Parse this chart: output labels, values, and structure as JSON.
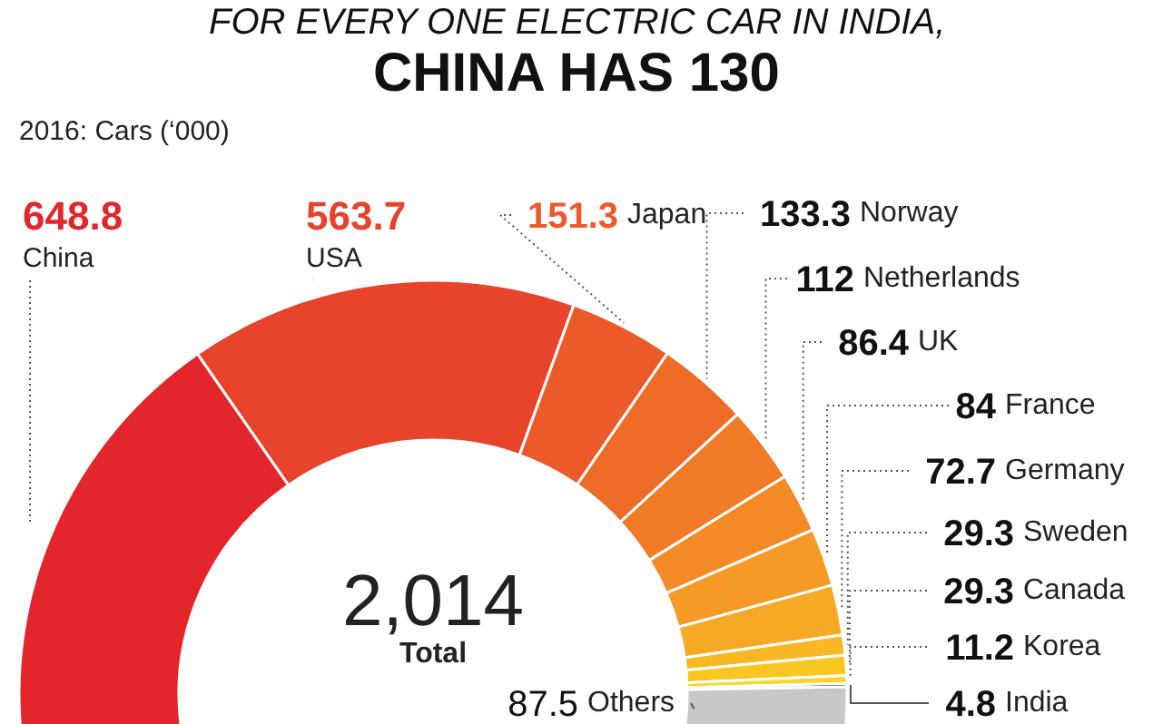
{
  "chart_data": {
    "type": "donut",
    "title": "FOR EVERY ONE ELECTRIC CAR IN INDIA,",
    "subtitle": "CHINA HAS 130",
    "categories": [
      "China",
      "USA",
      "Japan",
      "Norway",
      "Netherlands",
      "UK",
      "France",
      "Germany",
      "Sweden",
      "Canada",
      "Korea",
      "India",
      "Others"
    ],
    "values": [
      648.8,
      563.7,
      151.3,
      133.3,
      112,
      86.4,
      84,
      72.7,
      29.3,
      29.3,
      11.2,
      4.8,
      87.5
    ],
    "colors": [
      "#e3262b",
      "#e8432b",
      "#ec5a2a",
      "#ef6b28",
      "#f17b27",
      "#f38a26",
      "#f59a25",
      "#f6a924",
      "#f8b823",
      "#f9c622",
      "#fad528",
      "#1a1a1a",
      "#c8c8c8"
    ],
    "data_labels": true,
    "annotations": [
      "2016: Cars (‘000)",
      "2,014",
      "Total"
    ]
  }
}
